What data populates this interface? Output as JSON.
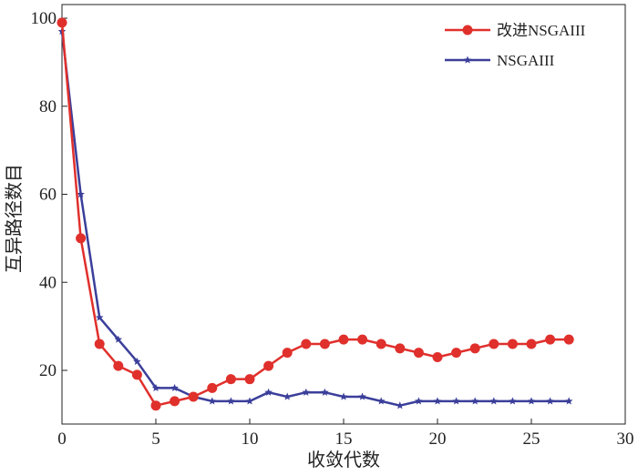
{
  "chart_data": {
    "type": "line",
    "title": "",
    "xlabel": "收敛代数",
    "ylabel": "互异路径数目",
    "xlim": [
      0,
      30
    ],
    "ylim": [
      8,
      102
    ],
    "xticks": [
      0,
      5,
      10,
      15,
      20,
      25,
      30
    ],
    "yticks": [
      20,
      40,
      60,
      80,
      100
    ],
    "grid": false,
    "legend_position": "top-right",
    "series": [
      {
        "name": "改进NSGAIII",
        "color": "#e0302c",
        "marker": "circle",
        "x": [
          0,
          1,
          2,
          3,
          4,
          5,
          6,
          7,
          8,
          9,
          10,
          11,
          12,
          13,
          14,
          15,
          16,
          17,
          18,
          19,
          20,
          21,
          22,
          23,
          24,
          25,
          26,
          27
        ],
        "y": [
          99,
          50,
          26,
          21,
          19,
          12,
          13,
          14,
          16,
          18,
          18,
          21,
          24,
          26,
          26,
          27,
          27,
          26,
          25,
          24,
          23,
          24,
          25,
          26,
          26,
          26,
          27,
          27
        ]
      },
      {
        "name": "NSGAIII",
        "color": "#3b3f9a",
        "marker": "star",
        "x": [
          0,
          1,
          2,
          3,
          4,
          5,
          6,
          7,
          8,
          9,
          10,
          11,
          12,
          13,
          14,
          15,
          16,
          17,
          18,
          19,
          20,
          21,
          22,
          23,
          24,
          25,
          26,
          27
        ],
        "y": [
          97,
          60,
          32,
          27,
          22,
          16,
          16,
          14,
          13,
          13,
          13,
          15,
          14,
          15,
          15,
          14,
          14,
          13,
          12,
          13,
          13,
          13,
          13,
          13,
          13,
          13,
          13,
          13
        ]
      }
    ]
  }
}
